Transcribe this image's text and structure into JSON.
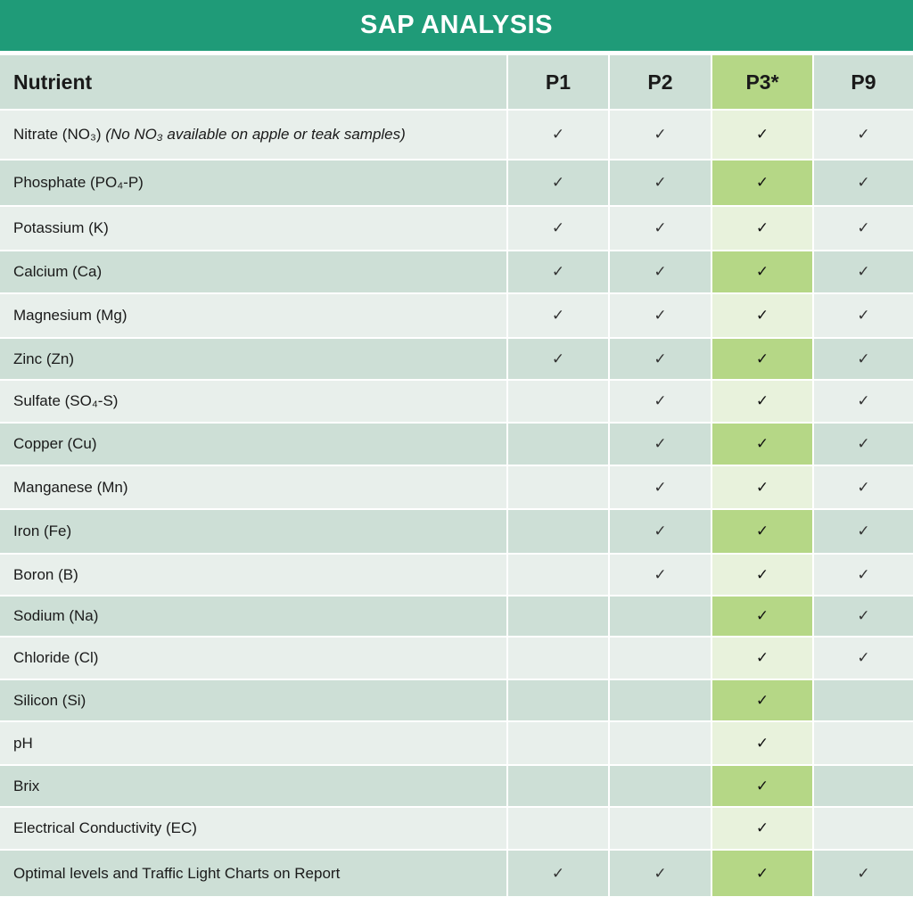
{
  "title": "SAP ANALYSIS",
  "check_glyph": "✓",
  "columns": {
    "nutrient": "Nutrient",
    "p1": "P1",
    "p2": "P2",
    "p3": "P3*",
    "p9": "P9"
  },
  "rows": [
    {
      "name": "Nitrate (NO₃)",
      "note": "(No NO₃ available on apple or teak samples)",
      "p1": true,
      "p2": true,
      "p3": true,
      "p9": true
    },
    {
      "name": "Phosphate (PO₄-P)",
      "p1": true,
      "p2": true,
      "p3": true,
      "p9": true
    },
    {
      "name": "Potassium (K)",
      "p1": true,
      "p2": true,
      "p3": true,
      "p9": true
    },
    {
      "name": "Calcium (Ca)",
      "p1": true,
      "p2": true,
      "p3": true,
      "p9": true
    },
    {
      "name": "Magnesium (Mg)",
      "p1": true,
      "p2": true,
      "p3": true,
      "p9": true
    },
    {
      "name": "Zinc (Zn)",
      "p1": true,
      "p2": true,
      "p3": true,
      "p9": true
    },
    {
      "name": "Sulfate (SO₄-S)",
      "p1": false,
      "p2": true,
      "p3": true,
      "p9": true
    },
    {
      "name": "Copper (Cu)",
      "p1": false,
      "p2": true,
      "p3": true,
      "p9": true
    },
    {
      "name": "Manganese (Mn)",
      "p1": false,
      "p2": true,
      "p3": true,
      "p9": true
    },
    {
      "name": "Iron (Fe)",
      "p1": false,
      "p2": true,
      "p3": true,
      "p9": true
    },
    {
      "name": "Boron (B)",
      "p1": false,
      "p2": true,
      "p3": true,
      "p9": true
    },
    {
      "name": "Sodium (Na)",
      "p1": false,
      "p2": false,
      "p3": true,
      "p9": true
    },
    {
      "name": "Chloride (Cl)",
      "p1": false,
      "p2": false,
      "p3": true,
      "p9": true
    },
    {
      "name": "Silicon (Si)",
      "p1": false,
      "p2": false,
      "p3": true,
      "p9": false
    },
    {
      "name": "pH",
      "p1": false,
      "p2": false,
      "p3": true,
      "p9": false
    },
    {
      "name": "Brix",
      "p1": false,
      "p2": false,
      "p3": true,
      "p9": false
    },
    {
      "name": "Electrical Conductivity (EC)",
      "p1": false,
      "p2": false,
      "p3": true,
      "p9": false
    },
    {
      "name": "Optimal levels and Traffic Light Charts on Report",
      "p1": true,
      "p2": true,
      "p3": true,
      "p9": true
    }
  ],
  "colors": {
    "banner": "#1f9b78",
    "row_light": "#e8efeb",
    "row_dark": "#cddfd6",
    "p3_light": "#e8f2dc",
    "p3_dark": "#b5d786"
  }
}
